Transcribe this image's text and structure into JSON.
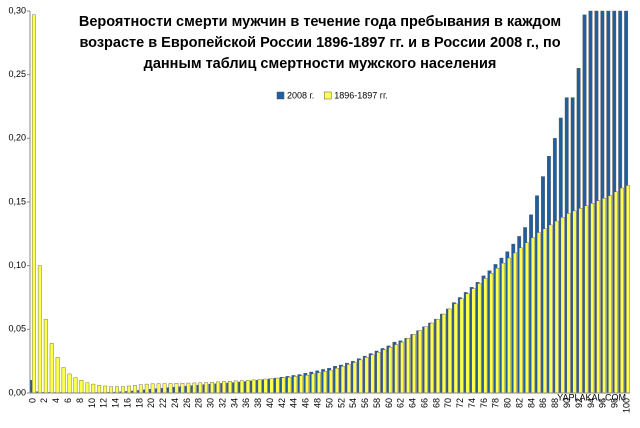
{
  "chart_data": {
    "type": "bar",
    "title": "Вероятности смерти мужчин в течение года пребывания в каждом возрасте в Европейской России 1896-1897 гг. и в России 2008 г., по данным таблиц смертности мужского населения",
    "watermark": "YAPLAKAL.COM",
    "categories": [
      "0",
      null,
      "2",
      null,
      "4",
      null,
      "6",
      null,
      "8",
      null,
      "10",
      null,
      "12",
      null,
      "14",
      null,
      "16",
      null,
      "18",
      null,
      "20",
      null,
      "22",
      null,
      "24",
      null,
      "26",
      null,
      "28",
      null,
      "30",
      null,
      "32",
      null,
      "34",
      null,
      "36",
      null,
      "38",
      null,
      "40",
      null,
      "42",
      null,
      "44",
      null,
      "46",
      null,
      "48",
      null,
      "50",
      null,
      "52",
      null,
      "54",
      null,
      "56",
      null,
      "58",
      null,
      "60",
      null,
      "62",
      null,
      "64",
      null,
      "66",
      null,
      "68",
      null,
      "70",
      null,
      "72",
      null,
      "74",
      null,
      "76",
      null,
      "78",
      null,
      "80",
      null,
      "82",
      null,
      "84",
      null,
      "86",
      null,
      "88",
      null,
      "90",
      null,
      "92",
      null,
      "94",
      null,
      "96",
      null,
      "98",
      null,
      "100"
    ],
    "series": [
      {
        "name": "2008 г.",
        "color": "#1f5f9f",
        "values": [
          0.01,
          0.001,
          0.0005,
          0.0005,
          0.0004,
          0.0004,
          0.0004,
          0.0003,
          0.0003,
          0.0003,
          0.0003,
          0.0004,
          0.0004,
          0.0005,
          0.0007,
          0.001,
          0.0013,
          0.0016,
          0.002,
          0.0025,
          0.003,
          0.0034,
          0.0038,
          0.0042,
          0.0046,
          0.005,
          0.0054,
          0.0058,
          0.0062,
          0.0066,
          0.007,
          0.0073,
          0.0076,
          0.0079,
          0.0082,
          0.0086,
          0.009,
          0.0095,
          0.01,
          0.0105,
          0.011,
          0.0117,
          0.0124,
          0.0131,
          0.0138,
          0.0145,
          0.0155,
          0.0165,
          0.0175,
          0.0185,
          0.0195,
          0.021,
          0.022,
          0.0235,
          0.025,
          0.027,
          0.029,
          0.031,
          0.033,
          0.035,
          0.037,
          0.04,
          0.041,
          0.043,
          0.046,
          0.049,
          0.052,
          0.055,
          0.058,
          0.062,
          0.066,
          0.071,
          0.075,
          0.079,
          0.083,
          0.087,
          0.092,
          0.096,
          0.101,
          0.106,
          0.111,
          0.117,
          0.123,
          0.13,
          0.14,
          0.155,
          0.17,
          0.186,
          0.2,
          0.216,
          0.232,
          0.232,
          0.255,
          0.297,
          0.3,
          0.3,
          0.3,
          0.3,
          0.3,
          0.3,
          0.3
        ]
      },
      {
        "name": "1896-1897 гг.",
        "color": "#ffff4d",
        "values": [
          0.297,
          0.1,
          0.058,
          0.039,
          0.028,
          0.02,
          0.015,
          0.012,
          0.01,
          0.008,
          0.007,
          0.006,
          0.0055,
          0.005,
          0.005,
          0.005,
          0.0055,
          0.006,
          0.0065,
          0.007,
          0.0072,
          0.0073,
          0.0074,
          0.0075,
          0.0076,
          0.0077,
          0.0078,
          0.0079,
          0.008,
          0.0082,
          0.0085,
          0.0087,
          0.009,
          0.0092,
          0.0095,
          0.0098,
          0.01,
          0.0103,
          0.0106,
          0.011,
          0.0113,
          0.0117,
          0.012,
          0.0125,
          0.013,
          0.0135,
          0.014,
          0.015,
          0.016,
          0.017,
          0.018,
          0.0195,
          0.021,
          0.0225,
          0.024,
          0.026,
          0.028,
          0.03,
          0.032,
          0.034,
          0.036,
          0.038,
          0.04,
          0.043,
          0.046,
          0.049,
          0.052,
          0.055,
          0.058,
          0.062,
          0.066,
          0.07,
          0.074,
          0.078,
          0.082,
          0.086,
          0.09,
          0.094,
          0.098,
          0.102,
          0.106,
          0.11,
          0.114,
          0.118,
          0.122,
          0.126,
          0.129,
          0.132,
          0.135,
          0.138,
          0.141,
          0.143,
          0.145,
          0.147,
          0.149,
          0.151,
          0.153,
          0.155,
          0.158,
          0.161,
          0.163
        ]
      }
    ],
    "ylim": [
      0,
      0.3
    ],
    "yticks": [
      {
        "value": 0,
        "label": "0,00"
      },
      {
        "value": 0.05,
        "label": "0,05"
      },
      {
        "value": 0.1,
        "label": "0,10"
      },
      {
        "value": 0.15,
        "label": "0,15"
      },
      {
        "value": 0.2,
        "label": "0,20"
      },
      {
        "value": 0.25,
        "label": "0,25"
      },
      {
        "value": 0.3,
        "label": "0,30"
      }
    ],
    "grid": false
  }
}
